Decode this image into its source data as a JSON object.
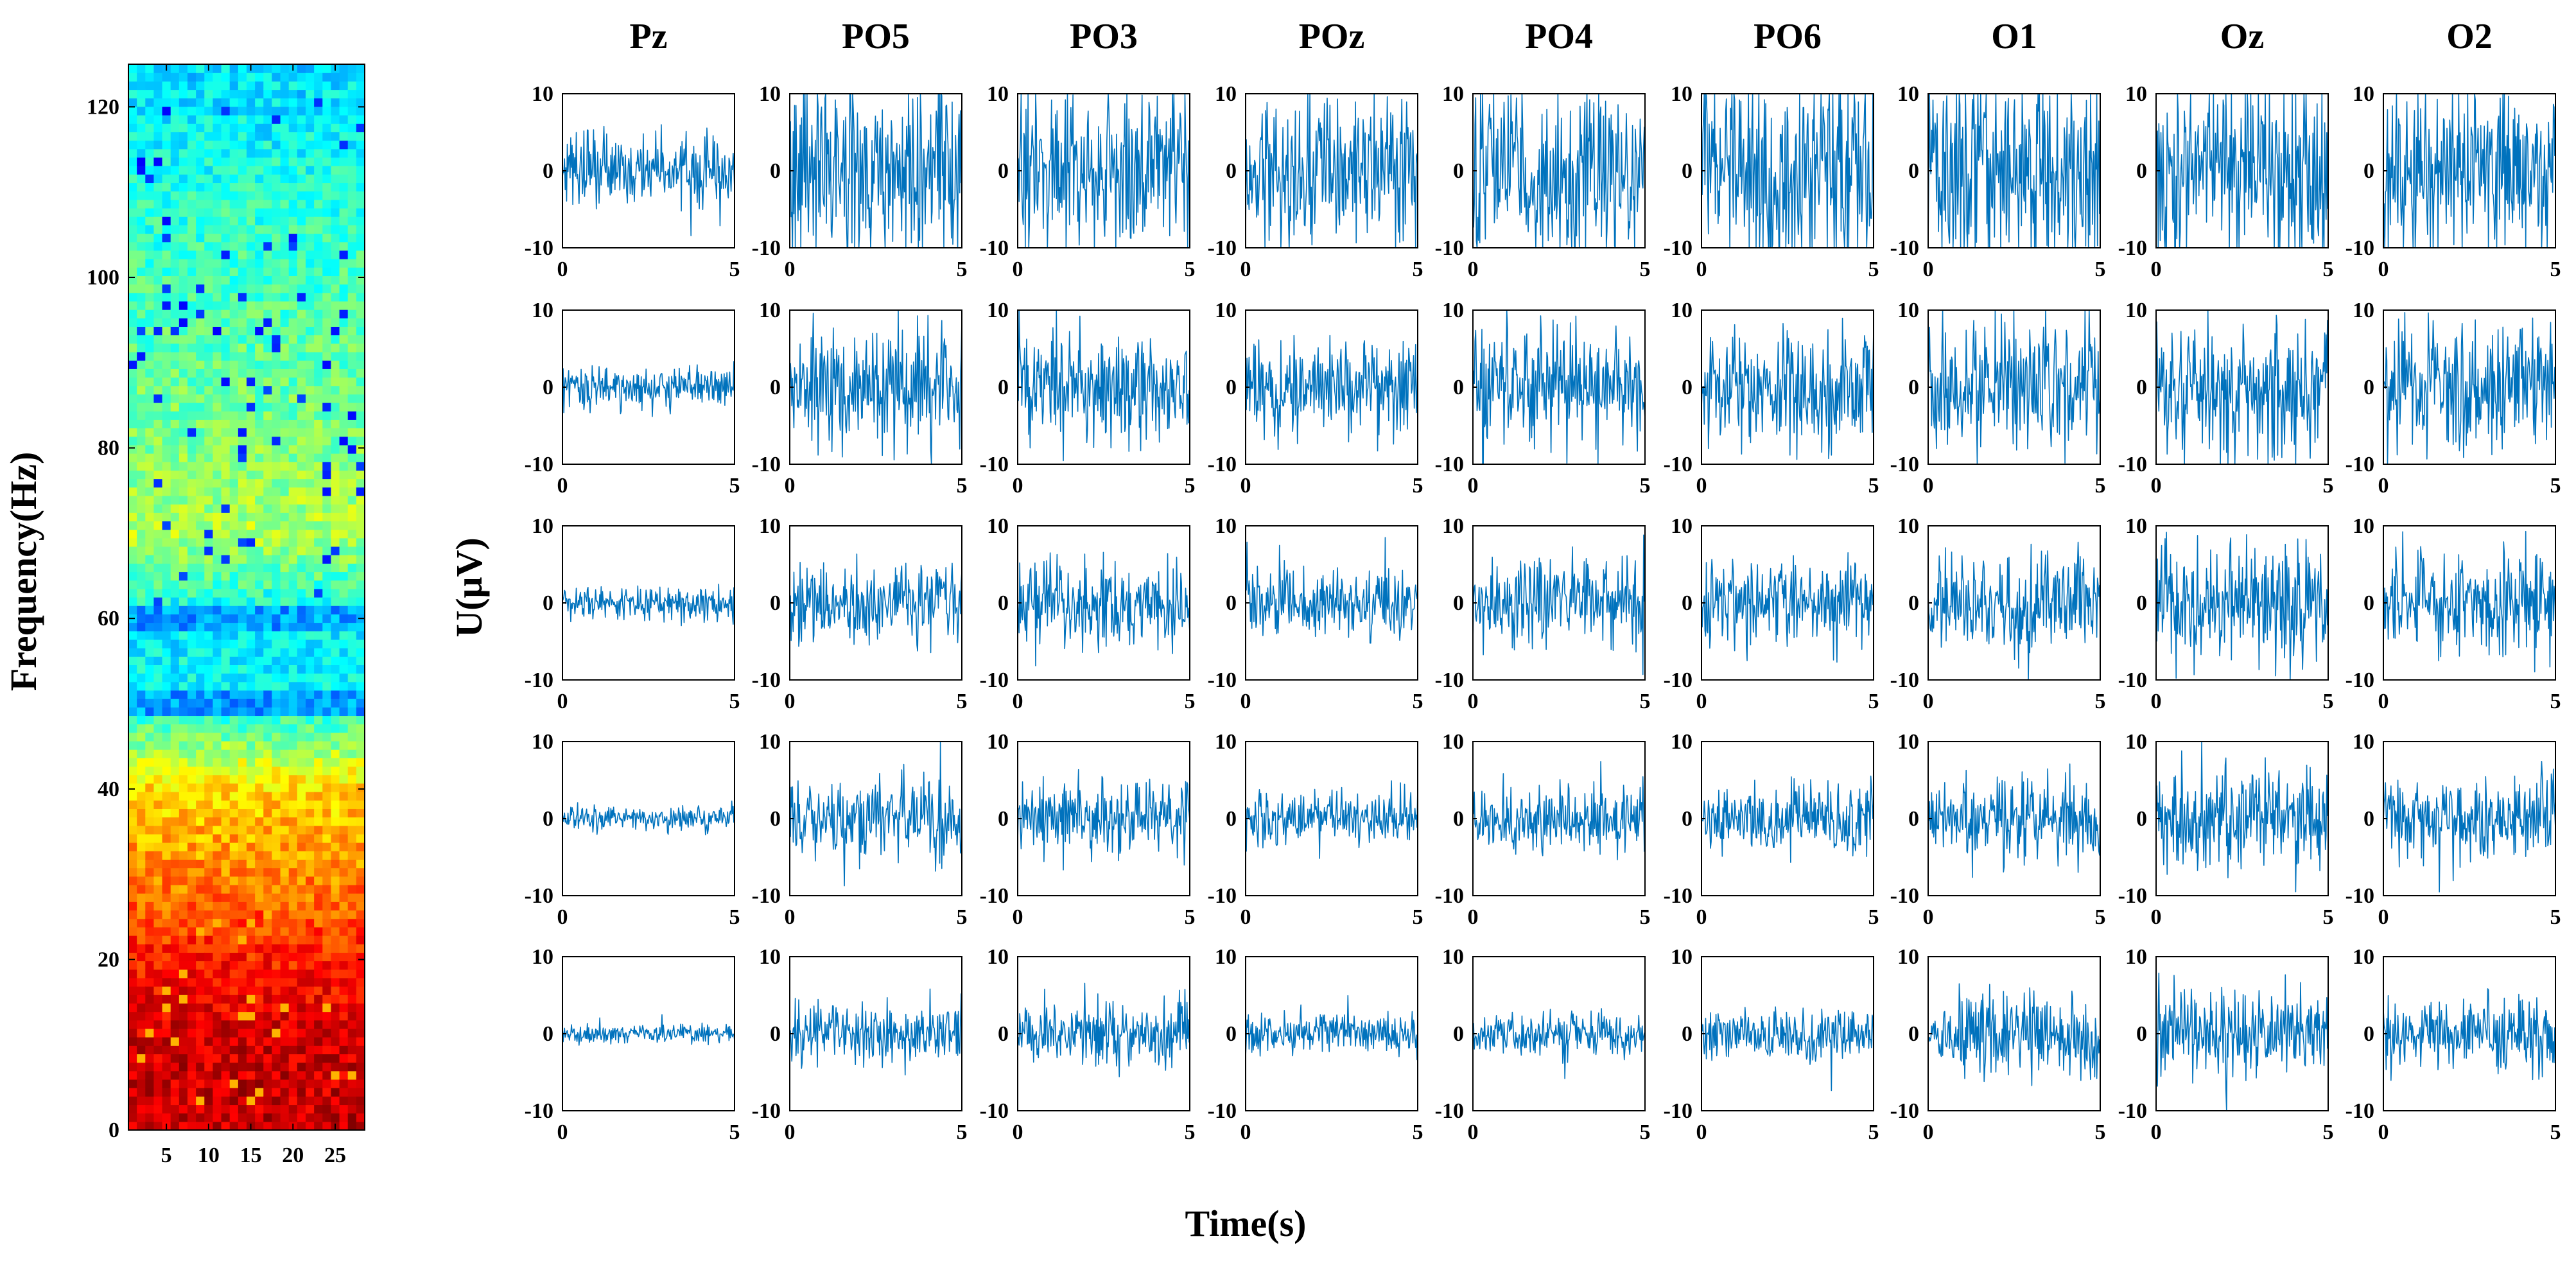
{
  "colors": {
    "trace": "#0072BD",
    "axes": "#000000",
    "background": "#FFFFFF"
  },
  "chart_data": [
    {
      "type": "heatmap",
      "title": "",
      "xlabel": "",
      "ylabel": "Frequency(Hz)",
      "xlim": [
        0.5,
        28.5
      ],
      "ylim": [
        0,
        125
      ],
      "x_ticks": [
        "5",
        "10",
        "15",
        "20",
        "25"
      ],
      "y_ticks": [
        "0",
        "20",
        "40",
        "60",
        "80",
        "100",
        "120"
      ],
      "colormap": "jet",
      "description_of_values": "columns 1-28 (time bins); rows 0-125 Hz; power highest (red) below ~25 Hz, orange/yellow 25-60 Hz, yellow-green with cyan specks above 60 Hz, cyan bands near 50 Hz and 60 Hz",
      "profile": {
        "freq_hz": [
          0,
          10,
          20,
          30,
          40,
          50,
          60,
          70,
          80,
          90,
          100,
          110,
          120,
          125
        ],
        "relative_level": [
          0.93,
          0.92,
          0.85,
          0.74,
          0.66,
          0.38,
          0.36,
          0.55,
          0.5,
          0.47,
          0.44,
          0.41,
          0.36,
          0.34
        ]
      },
      "notches_hz": [
        50,
        60
      ]
    },
    {
      "type": "line",
      "title": "",
      "xlabel": "Time(s)",
      "ylabel": "U(μV)",
      "xlim": [
        0,
        5
      ],
      "ylim": [
        -10,
        10
      ],
      "x_ticks": [
        "0",
        "5"
      ],
      "y_ticks": [
        "10",
        "0",
        "-10"
      ],
      "channels": [
        "Pz",
        "PO5",
        "PO3",
        "POz",
        "PO4",
        "PO6",
        "O1",
        "Oz",
        "O2"
      ],
      "rows": 5,
      "grid": false,
      "amplitude_std_uV": [
        [
          2.2,
          6.0,
          5.6,
          4.6,
          5.8,
          6.2,
          6.8,
          6.6,
          6.0
        ],
        [
          1.3,
          3.8,
          3.6,
          3.0,
          3.6,
          3.6,
          4.2,
          4.4,
          4.0
        ],
        [
          1.1,
          2.8,
          2.8,
          2.4,
          2.7,
          2.8,
          3.4,
          3.6,
          3.2
        ],
        [
          0.8,
          2.6,
          2.6,
          1.8,
          2.2,
          2.2,
          2.8,
          3.2,
          2.8
        ],
        [
          0.6,
          2.0,
          2.0,
          1.3,
          1.4,
          1.6,
          2.6,
          2.8,
          2.4
        ]
      ],
      "samples_per_trace": 250
    }
  ]
}
